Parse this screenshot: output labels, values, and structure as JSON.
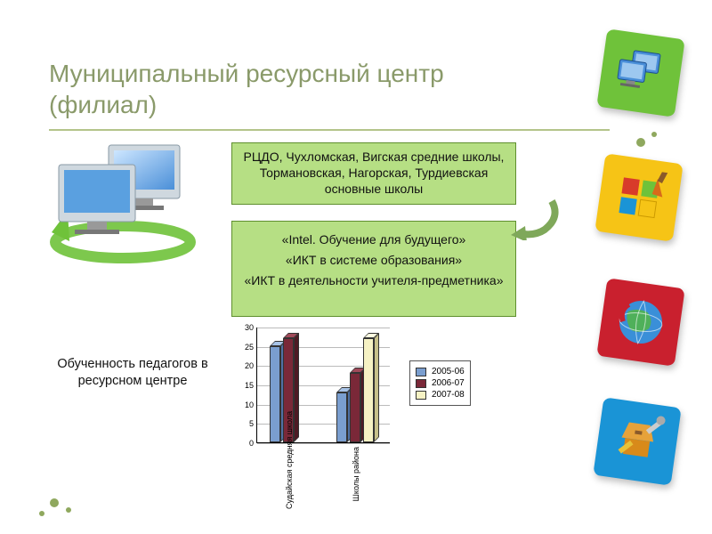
{
  "title_line1": "Муниципальный ресурсный центр",
  "title_line2": "(филиал)",
  "box_top": "РЦДО, Чухломская, Вигская средние школы, Тормановская, Нагорская, Турдиевская основные школы",
  "box_bot": {
    "l1": "«Intel. Обучение для будущего»",
    "l2": "«ИКТ в системе образования»",
    "l3": "«ИКТ в деятельности учителя-предметника»"
  },
  "chart_label": "Обученность педагогов в ресурсном центре",
  "chart": {
    "ymax": 30,
    "ytick_step": 5,
    "yticks": [
      0,
      5,
      10,
      15,
      20,
      25,
      30
    ],
    "categories": [
      {
        "label": "Судайская средняя школа",
        "values": [
          25,
          27,
          0
        ]
      },
      {
        "label": "Школы района",
        "values": [
          13,
          18,
          27
        ]
      }
    ],
    "series": [
      {
        "label": "2005-06",
        "color": "#7a9ecf",
        "dark": "#4f6fa3",
        "light": "#a7c2e6"
      },
      {
        "label": "2006-07",
        "color": "#7a2838",
        "dark": "#4d1a24",
        "light": "#a14a5a"
      },
      {
        "label": "2007-08",
        "color": "#f6f2c4",
        "dark": "#c7c08a",
        "light": "#fffde0"
      }
    ]
  },
  "tiles": {
    "tr": "#6fc23a",
    "r1": "#f6c416",
    "r2": "#c9202e",
    "r3": "#1a94d6"
  },
  "colors": {
    "box_bg": "#b6df84",
    "box_border": "#5f8f2f",
    "title": "#8a9a6a"
  }
}
